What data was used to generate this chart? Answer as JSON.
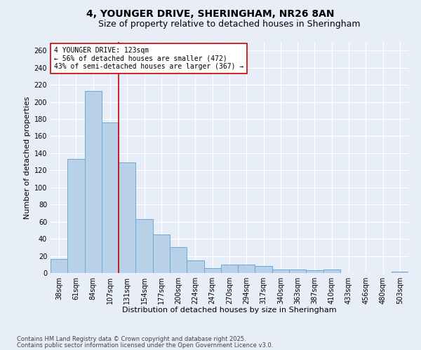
{
  "title_line1": "4, YOUNGER DRIVE, SHERINGHAM, NR26 8AN",
  "title_line2": "Size of property relative to detached houses in Sheringham",
  "xlabel": "Distribution of detached houses by size in Sheringham",
  "ylabel": "Number of detached properties",
  "categories": [
    "38sqm",
    "61sqm",
    "84sqm",
    "107sqm",
    "131sqm",
    "154sqm",
    "177sqm",
    "200sqm",
    "224sqm",
    "247sqm",
    "270sqm",
    "294sqm",
    "317sqm",
    "340sqm",
    "363sqm",
    "387sqm",
    "410sqm",
    "433sqm",
    "456sqm",
    "480sqm",
    "503sqm"
  ],
  "values": [
    16,
    133,
    213,
    176,
    129,
    63,
    45,
    30,
    15,
    6,
    10,
    10,
    8,
    4,
    4,
    3,
    4,
    0,
    0,
    0,
    2
  ],
  "bar_color": "#b8d0e8",
  "bar_edge_color": "#6aaad4",
  "bar_edge_width": 0.7,
  "vline_color": "#cc0000",
  "vline_position": 3.5,
  "annotation_text": "4 YOUNGER DRIVE: 123sqm\n← 56% of detached houses are smaller (472)\n43% of semi-detached houses are larger (367) →",
  "annotation_box_facecolor": "#ffffff",
  "annotation_box_edgecolor": "#cc0000",
  "ylim": [
    0,
    270
  ],
  "yticks": [
    0,
    20,
    40,
    60,
    80,
    100,
    120,
    140,
    160,
    180,
    200,
    220,
    240,
    260
  ],
  "background_color": "#e8eef8",
  "grid_color": "#ffffff",
  "footnote_line1": "Contains HM Land Registry data © Crown copyright and database right 2025.",
  "footnote_line2": "Contains public sector information licensed under the Open Government Licence v3.0.",
  "title_fontsize": 10,
  "subtitle_fontsize": 9,
  "axis_label_fontsize": 8,
  "tick_label_fontsize": 7,
  "annotation_fontsize": 7,
  "footnote_fontsize": 6
}
